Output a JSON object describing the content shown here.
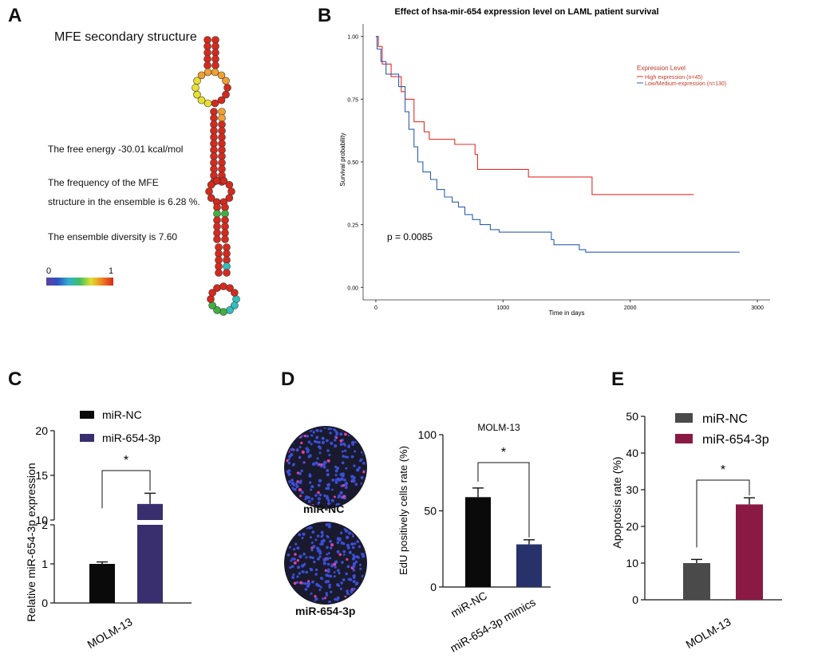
{
  "panel_labels": [
    "A",
    "B",
    "C",
    "D",
    "E"
  ],
  "panel_a": {
    "title": "MFE secondary structure",
    "free_energy": "The free energy -30.01 kcal/mol",
    "frequency_line1": "The frequency of the MFE",
    "frequency_line2": "structure in the ensemble is 6.28 %.",
    "diversity": "The ensemble diversity is 7.60",
    "scale_min": "0",
    "scale_max": "1",
    "colors": {
      "high": "#d42a1e",
      "mid": "#f0a030",
      "yellow": "#e8e030",
      "green": "#40b040",
      "cyan": "#30c0c0"
    }
  },
  "chart_data": [
    {
      "id": "B",
      "type": "line",
      "title": "Effect of hsa-mir-654 expression level on LAML patient survival",
      "xlabel": "Time in days",
      "ylabel": "Survival probability",
      "xlim": [
        -100,
        3100
      ],
      "ylim": [
        -0.05,
        1.05
      ],
      "x_ticks": [
        "0",
        "1000",
        "2000",
        "3000"
      ],
      "y_ticks": [
        "0.00",
        "0.25",
        "0.50",
        "0.75",
        "1.00"
      ],
      "legend_title": "Expression Level",
      "annotation": "p = 0.0085",
      "series": [
        {
          "name": "High expression (n=45)",
          "color": "#e0302a",
          "x": [
            0,
            20,
            20,
            50,
            50,
            120,
            120,
            200,
            200,
            230,
            230,
            300,
            300,
            380,
            380,
            420,
            420,
            620,
            620,
            780,
            780,
            800,
            800,
            1000,
            1000,
            1200,
            1200,
            1400,
            1400,
            1700,
            1700,
            2500
          ],
          "y": [
            1.0,
            1.0,
            0.96,
            0.96,
            0.89,
            0.89,
            0.84,
            0.84,
            0.78,
            0.78,
            0.75,
            0.75,
            0.66,
            0.66,
            0.62,
            0.62,
            0.59,
            0.59,
            0.57,
            0.57,
            0.53,
            0.53,
            0.47,
            0.47,
            0.47,
            0.47,
            0.44,
            0.44,
            0.44,
            0.44,
            0.37,
            0.37
          ]
        },
        {
          "name": "Low/Medium-expression (n=130)",
          "color": "#2f5eb2",
          "x": [
            0,
            10,
            10,
            40,
            40,
            80,
            80,
            180,
            180,
            230,
            230,
            260,
            260,
            300,
            300,
            330,
            330,
            370,
            370,
            430,
            430,
            480,
            480,
            540,
            540,
            600,
            600,
            650,
            650,
            700,
            700,
            760,
            760,
            820,
            820,
            900,
            900,
            970,
            970,
            1380,
            1380,
            1400,
            1400,
            1600,
            1600,
            1650,
            1650,
            2860
          ],
          "y": [
            1.0,
            1.0,
            0.95,
            0.95,
            0.9,
            0.9,
            0.85,
            0.85,
            0.8,
            0.8,
            0.7,
            0.7,
            0.63,
            0.63,
            0.56,
            0.56,
            0.5,
            0.5,
            0.46,
            0.46,
            0.43,
            0.43,
            0.39,
            0.39,
            0.36,
            0.36,
            0.34,
            0.34,
            0.32,
            0.32,
            0.29,
            0.29,
            0.27,
            0.27,
            0.25,
            0.25,
            0.23,
            0.23,
            0.22,
            0.22,
            0.19,
            0.19,
            0.17,
            0.17,
            0.15,
            0.15,
            0.14,
            0.14
          ]
        }
      ]
    },
    {
      "id": "C",
      "type": "bar",
      "xlabel": "MOLM-13",
      "ylabel": "Relative miR-654-3p expression",
      "categories": [
        "miR-NC",
        "miR-654-3p"
      ],
      "values": [
        1.0,
        11.8
      ],
      "errors": [
        0.05,
        1.2
      ],
      "colors": [
        "#0a0a0a",
        "#3a2f6e"
      ],
      "axis_break": [
        2,
        10
      ],
      "y_ticks": [
        "0",
        "1",
        "2",
        "10",
        "15",
        "20"
      ],
      "significance": "*"
    },
    {
      "id": "D",
      "type": "bar",
      "title": "MOLM-13",
      "ylabel": "EdU positively cells rate (%)",
      "categories": [
        "miR-NC",
        "miR-654-3p mimics"
      ],
      "values": [
        59,
        28
      ],
      "errors": [
        6,
        3
      ],
      "colors": [
        "#0a0a0a",
        "#27326a"
      ],
      "ylim": [
        0,
        100
      ],
      "y_ticks": [
        "0",
        "50",
        "100"
      ],
      "significance": "*"
    },
    {
      "id": "E",
      "type": "bar",
      "xlabel": "MOLM-13",
      "ylabel": "Apoptosis rate (%)",
      "categories": [
        "miR-NC",
        "miR-654-3p"
      ],
      "values": [
        10,
        26
      ],
      "errors": [
        1,
        1.8
      ],
      "colors": [
        "#4a4a4a",
        "#8a1a44"
      ],
      "ylim": [
        0,
        50
      ],
      "y_ticks": [
        "0",
        "10",
        "20",
        "30",
        "40",
        "50"
      ],
      "significance": "*"
    }
  ],
  "panel_d_images": {
    "label_top": "miR-NC",
    "label_bottom": "miR-654-3p"
  }
}
